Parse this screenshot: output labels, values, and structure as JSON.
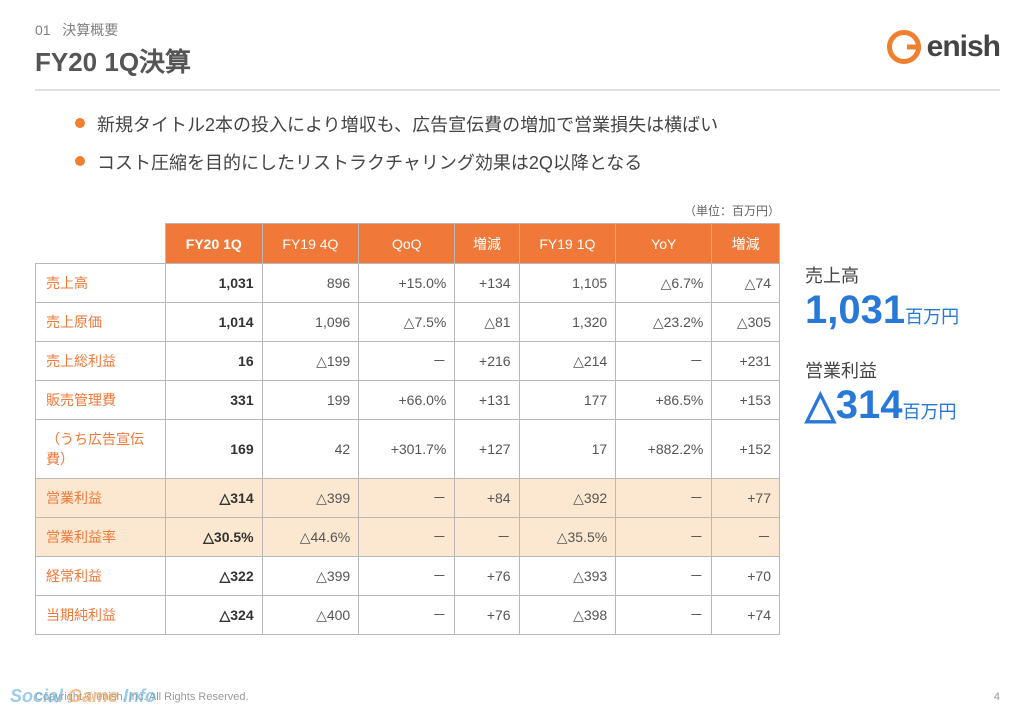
{
  "header": {
    "section_no": "01",
    "section_label": "決算概要",
    "title": "FY20 1Q決算",
    "logo_text": "enish"
  },
  "bullets": [
    "新規タイトル2本の投入により増収も、広告宣伝費の増加で営業損失は横ばい",
    "コスト圧縮を目的にしたリストラクチャリング効果は2Q以降となる"
  ],
  "table": {
    "unit_label": "（単位：百万円）",
    "columns": [
      "FY20 1Q",
      "FY19 4Q",
      "QoQ",
      "増減",
      "FY19 1Q",
      "YoY",
      "増減"
    ],
    "rows": [
      {
        "label": "売上高",
        "cells": [
          "1,031",
          "896",
          "+15.0%",
          "+134",
          "1,105",
          "△6.7%",
          "△74"
        ],
        "highlight": false
      },
      {
        "label": "売上原価",
        "cells": [
          "1,014",
          "1,096",
          "△7.5%",
          "△81",
          "1,320",
          "△23.2%",
          "△305"
        ],
        "highlight": false
      },
      {
        "label": "売上総利益",
        "cells": [
          "16",
          "△199",
          "－",
          "+216",
          "△214",
          "－",
          "+231"
        ],
        "highlight": false
      },
      {
        "label": "販売管理費",
        "cells": [
          "331",
          "199",
          "+66.0%",
          "+131",
          "177",
          "+86.5%",
          "+153"
        ],
        "highlight": false
      },
      {
        "label": "（うち広告宣伝費）",
        "cells": [
          "169",
          "42",
          "+301.7%",
          "+127",
          "17",
          "+882.2%",
          "+152"
        ],
        "highlight": false
      },
      {
        "label": "営業利益",
        "cells": [
          "△314",
          "△399",
          "－",
          "+84",
          "△392",
          "－",
          "+77"
        ],
        "highlight": true
      },
      {
        "label": "営業利益率",
        "cells": [
          "△30.5%",
          "△44.6%",
          "－",
          "－",
          "△35.5%",
          "－",
          "－"
        ],
        "highlight": true
      },
      {
        "label": "経常利益",
        "cells": [
          "△322",
          "△399",
          "－",
          "+76",
          "△393",
          "－",
          "+70"
        ],
        "highlight": false
      },
      {
        "label": "当期純利益",
        "cells": [
          "△324",
          "△400",
          "－",
          "+76",
          "△398",
          "－",
          "+74"
        ],
        "highlight": false
      }
    ]
  },
  "side": {
    "block1_label": "売上高",
    "block1_value": "1,031",
    "block1_unit": "百万円",
    "block2_label": "営業利益",
    "block2_value": "△314",
    "block2_unit": "百万円"
  },
  "footer": {
    "copyright": "Copyright © enish, Inc. All Rights Reserved.",
    "pageno": "4",
    "watermark1": "Social ",
    "watermark2": "Game ",
    "watermark3": "Info"
  },
  "colors": {
    "accent_orange": "#f07838",
    "highlight_bg": "#fce8d0",
    "value_blue": "#2878d8",
    "border": "#b8b8b8"
  }
}
